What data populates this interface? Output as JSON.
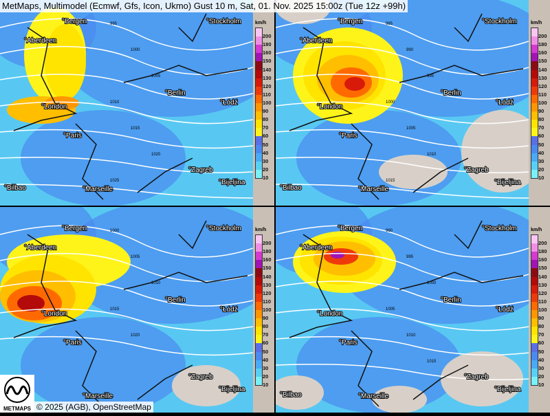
{
  "title": "MetMaps, Multimodel (Ecmwf, Gfs, Icon, Ukmo) Gust 10 m, Sat, 01. Nov. 2025 15:00z (Tue 12z +99h)",
  "footer": "© 2025 (AGB), OpenStreetMap",
  "logo_text": "METMAPS",
  "legend": {
    "unit": "km/h",
    "levels": [
      200,
      180,
      160,
      150,
      140,
      130,
      120,
      110,
      100,
      90,
      80,
      70,
      60,
      50,
      40,
      30,
      20,
      10
    ],
    "colors": [
      "#f9c6f2",
      "#f08ee6",
      "#d43ad0",
      "#a014b4",
      "#8c0a14",
      "#b40a0a",
      "#d81a0a",
      "#ee3a0a",
      "#ff6a00",
      "#ff9600",
      "#ffbe00",
      "#ffe400",
      "#fff41a",
      "#5a6ee6",
      "#4a8af0",
      "#4aaaf5",
      "#58d0f5",
      "#7af0f8"
    ]
  },
  "panels": [
    {
      "model": "ecmwf",
      "isobars": [
        "995",
        "1000",
        "1005",
        "1010",
        "1015",
        "1020",
        "1025"
      ]
    },
    {
      "model": "gfs",
      "isobars": [
        "985",
        "990",
        "995",
        "1000",
        "1005",
        "1010",
        "1015"
      ]
    },
    {
      "model": "icon",
      "isobars": [
        "1000",
        "1005",
        "1010",
        "1015",
        "1020"
      ]
    },
    {
      "model": "ukmo",
      "isobars": [
        "990",
        "995",
        "1000",
        "1005",
        "1010",
        "1015"
      ]
    }
  ],
  "cities": [
    "Aberdeen",
    "London",
    "Paris",
    "Berlin",
    "Łódź",
    "Zagreb",
    "Bijeljina",
    "Bilbao",
    "Marseille",
    "Bergen",
    "Stockholm"
  ]
}
